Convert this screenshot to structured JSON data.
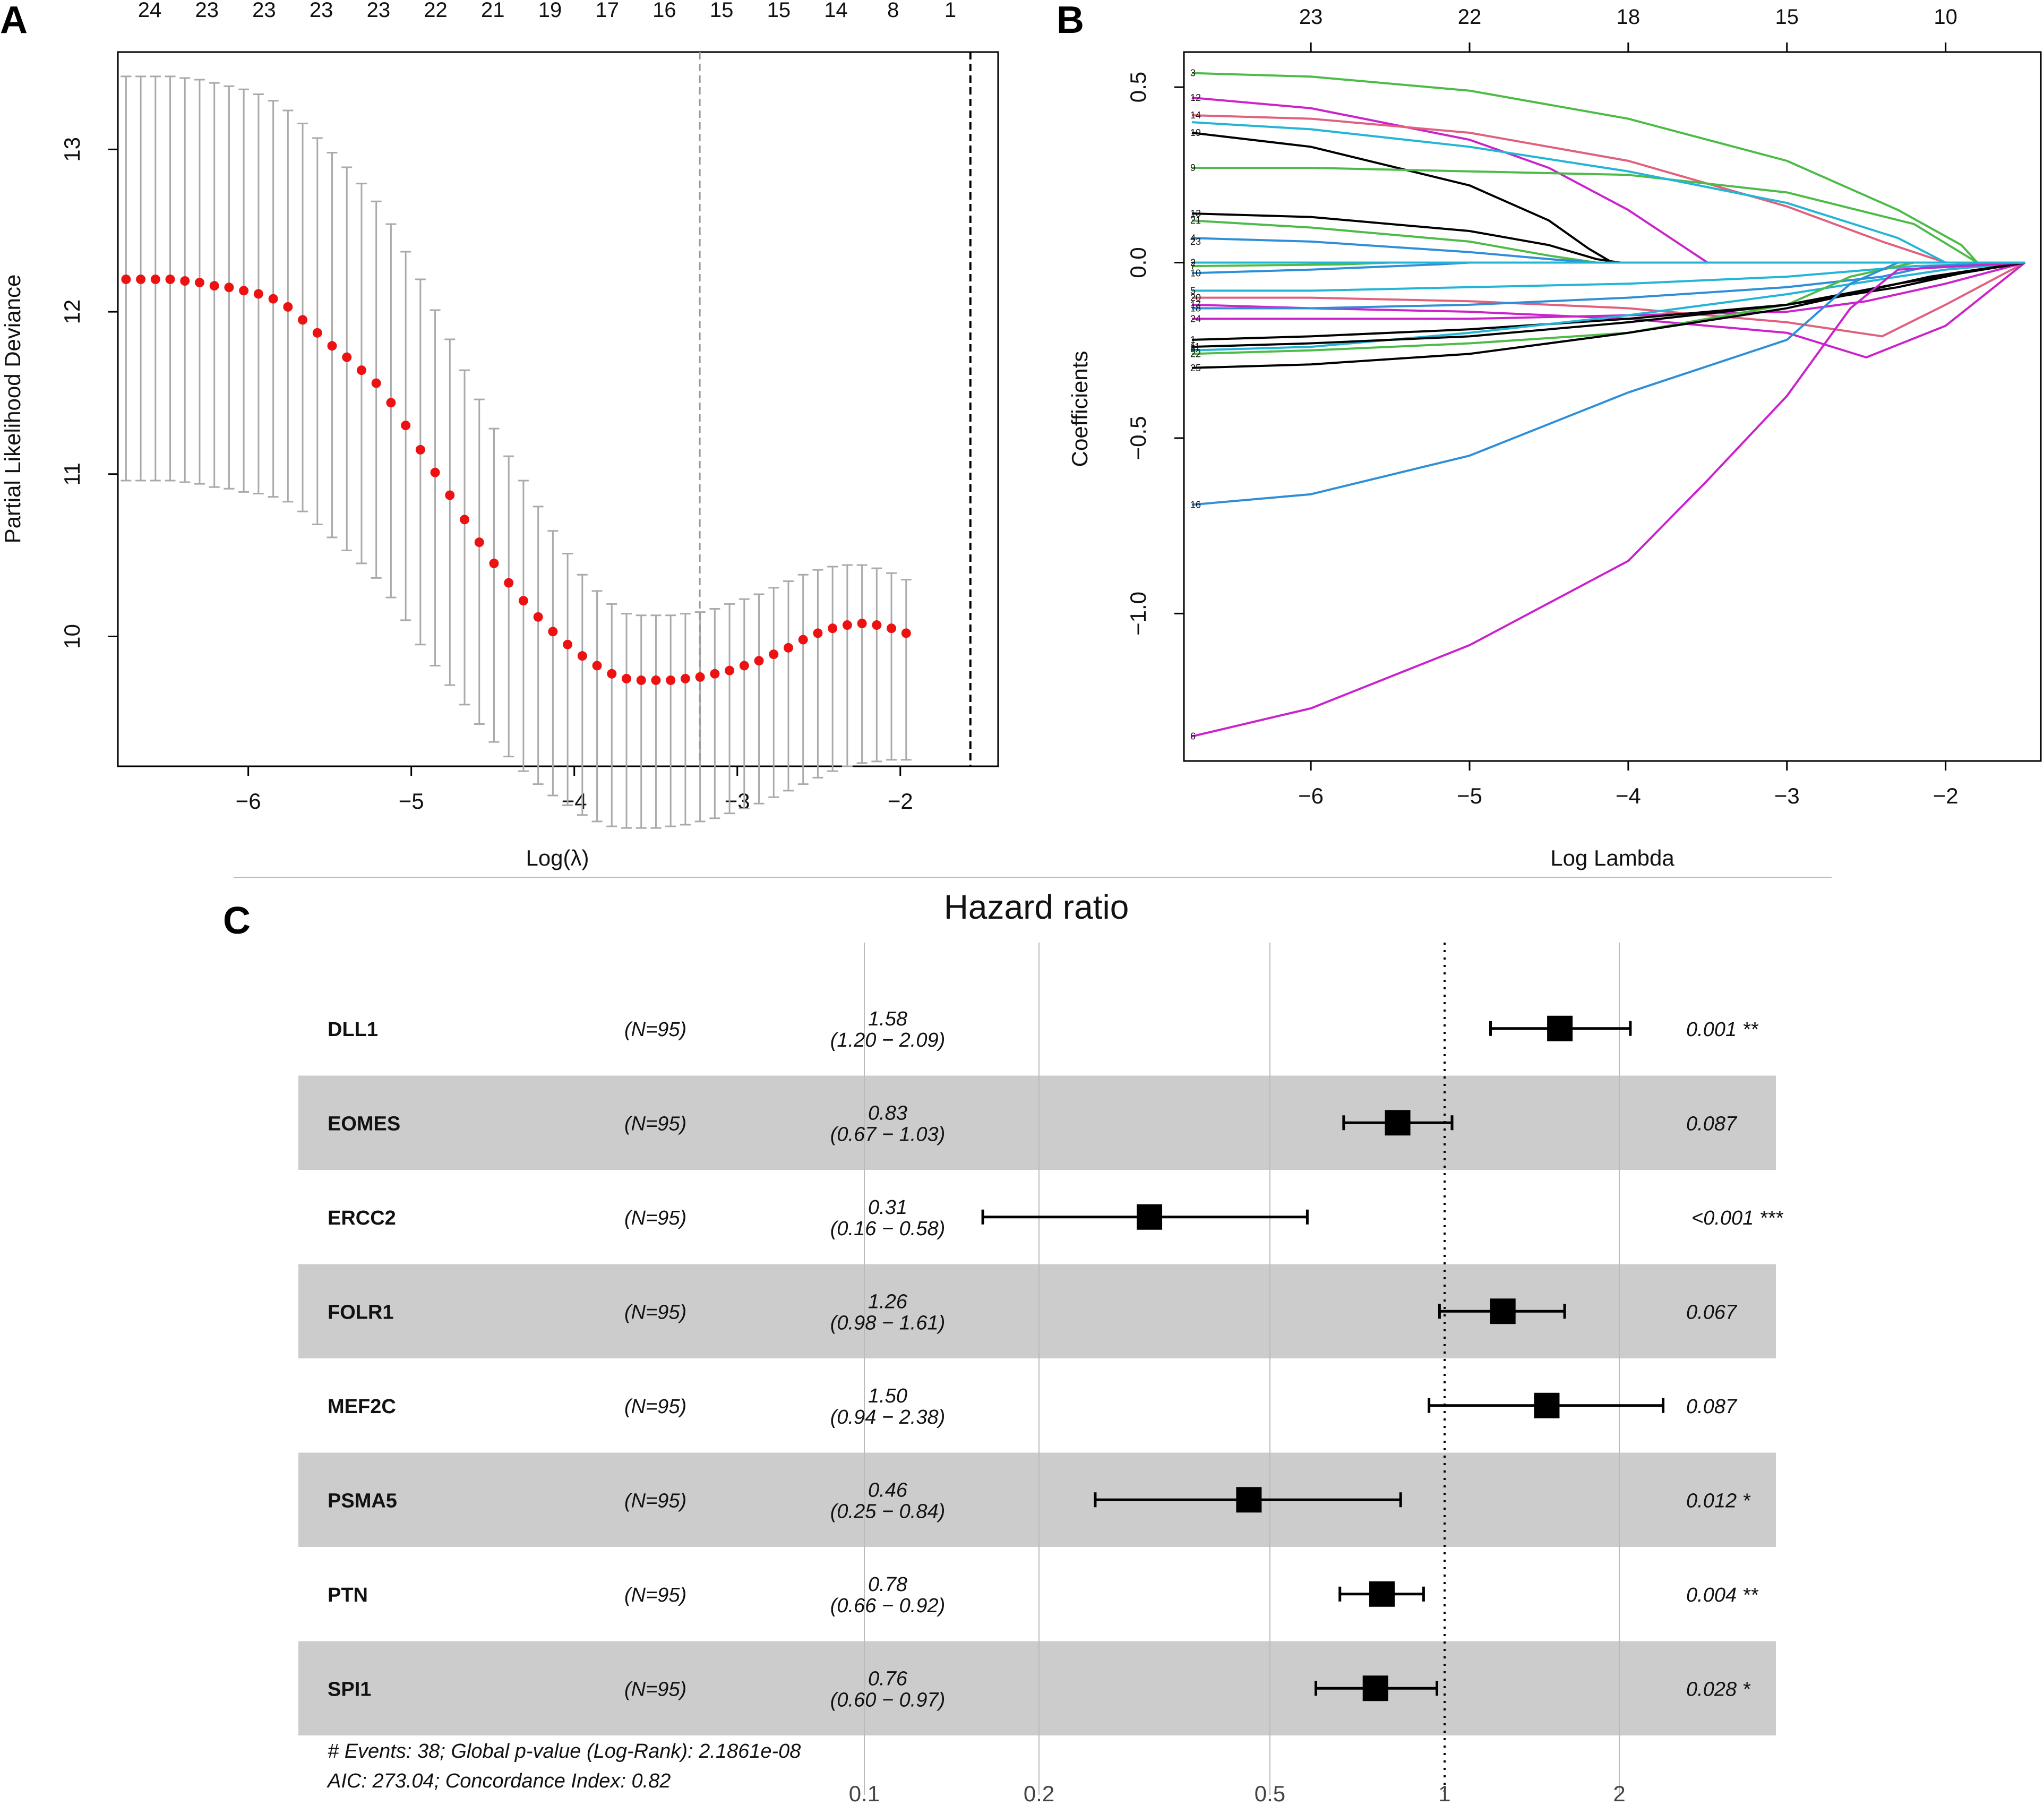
{
  "panels": {
    "a_label": "A",
    "b_label": "B",
    "c_label": "C"
  },
  "chart_data": [
    {
      "id": "A",
      "type": "scatter",
      "title": "",
      "xlabel": "Log(λ)",
      "ylabel": "Partial Likelihood Deviance",
      "xlim": [
        -6.8,
        -1.4
      ],
      "ylim": [
        9.2,
        13.6
      ],
      "xticks": [
        -6,
        -5,
        -4,
        -3,
        -2
      ],
      "yticks": [
        10,
        11,
        12,
        13
      ],
      "top_axis_labels": [
        "24",
        "23",
        "23",
        "23",
        "23",
        "22",
        "21",
        "19",
        "17",
        "16",
        "15",
        "15",
        "14",
        "8",
        "1"
      ],
      "vlines": [
        -3.23,
        -1.57
      ],
      "x_start": -6.75,
      "x_step": 0.0903,
      "mean": [
        12.2,
        12.2,
        12.2,
        12.2,
        12.19,
        12.18,
        12.16,
        12.15,
        12.13,
        12.11,
        12.08,
        12.03,
        11.95,
        11.87,
        11.79,
        11.72,
        11.64,
        11.56,
        11.44,
        11.3,
        11.15,
        11.01,
        10.87,
        10.72,
        10.58,
        10.45,
        10.33,
        10.22,
        10.12,
        10.03,
        9.95,
        9.88,
        9.82,
        9.77,
        9.74,
        9.73,
        9.73,
        9.73,
        9.74,
        9.75,
        9.77,
        9.79,
        9.82,
        9.85,
        9.89,
        9.93,
        9.98,
        10.02,
        10.05,
        10.07,
        10.08,
        10.07,
        10.05,
        10.02
      ],
      "upper": [
        13.45,
        13.45,
        13.45,
        13.45,
        13.44,
        13.43,
        13.41,
        13.39,
        13.37,
        13.34,
        13.3,
        13.24,
        13.16,
        13.07,
        12.98,
        12.89,
        12.79,
        12.68,
        12.54,
        12.37,
        12.2,
        12.01,
        11.83,
        11.64,
        11.46,
        11.28,
        11.11,
        10.96,
        10.8,
        10.65,
        10.51,
        10.38,
        10.28,
        10.2,
        10.14,
        10.13,
        10.13,
        10.13,
        10.14,
        10.15,
        10.17,
        10.2,
        10.23,
        10.26,
        10.3,
        10.34,
        10.38,
        10.41,
        10.43,
        10.44,
        10.44,
        10.42,
        10.39,
        10.35
      ],
      "lower": [
        10.96,
        10.96,
        10.96,
        10.96,
        10.95,
        10.94,
        10.92,
        10.91,
        10.89,
        10.88,
        10.86,
        10.83,
        10.77,
        10.69,
        10.61,
        10.53,
        10.45,
        10.36,
        10.24,
        10.1,
        9.95,
        9.82,
        9.7,
        9.58,
        9.46,
        9.35,
        9.26,
        9.17,
        9.09,
        9.02,
        8.96,
        8.9,
        8.86,
        8.83,
        8.82,
        8.82,
        8.82,
        8.83,
        8.84,
        8.86,
        8.88,
        8.91,
        8.94,
        8.97,
        9.01,
        9.05,
        9.09,
        9.13,
        9.17,
        9.2,
        9.22,
        9.23,
        9.24,
        9.24
      ]
    },
    {
      "id": "B",
      "type": "line",
      "title": "",
      "xlabel": "Log Lambda",
      "ylabel": "Coefficients",
      "xlim": [
        -6.8,
        -1.4
      ],
      "ylim": [
        -1.42,
        0.6
      ],
      "xticks": [
        -6,
        -5,
        -4,
        -3,
        -2
      ],
      "yticks": [
        -1.0,
        -0.5,
        0.0,
        0.5
      ],
      "ytick_labels": [
        "-1.0",
        "-0.5",
        "0.0",
        "0.5"
      ],
      "top_axis_labels": [
        {
          "x": -6,
          "label": "23"
        },
        {
          "x": -5,
          "label": "22"
        },
        {
          "x": -4,
          "label": "18"
        },
        {
          "x": -3,
          "label": "15"
        },
        {
          "x": -2,
          "label": "10"
        }
      ],
      "series": [
        {
          "name": "3",
          "color": "#4CBB47",
          "x": [
            -6.75,
            -6,
            -5,
            -4,
            -3,
            -2.3,
            -1.9,
            -1.8,
            -1.5
          ],
          "y": [
            0.54,
            0.53,
            0.49,
            0.41,
            0.29,
            0.15,
            0.05,
            0,
            0
          ]
        },
        {
          "name": "12",
          "color": "#CC22CC",
          "x": [
            -6.75,
            -6,
            -5,
            -4.5,
            -4,
            -3.6,
            -3.5,
            -1.5
          ],
          "y": [
            0.47,
            0.44,
            0.35,
            0.27,
            0.15,
            0.03,
            0,
            0
          ]
        },
        {
          "name": "14",
          "color": "#E0607E",
          "x": [
            -6.75,
            -6,
            -5,
            -4,
            -3,
            -2.4,
            -2,
            -1.5
          ],
          "y": [
            0.42,
            0.41,
            0.37,
            0.29,
            0.16,
            0.06,
            0,
            0
          ]
        },
        {
          "name": "19",
          "color": "#000000",
          "x": [
            -6.75,
            -6,
            -5,
            -4.5,
            -4.25,
            -4.1,
            -1.5
          ],
          "y": [
            0.37,
            0.33,
            0.22,
            0.12,
            0.04,
            0,
            0
          ]
        },
        {
          "name": "9",
          "color": "#4CBB47",
          "x": [
            -6.75,
            -6,
            -5,
            -4,
            -3,
            -2.2,
            -1.8,
            -1.5
          ],
          "y": [
            0.27,
            0.27,
            0.26,
            0.25,
            0.2,
            0.11,
            0,
            0
          ]
        },
        {
          "name": "13",
          "color": "#000000",
          "x": [
            -6.75,
            -6,
            -5,
            -4.5,
            -4.2,
            -4.05,
            -1.5
          ],
          "y": [
            0.14,
            0.13,
            0.09,
            0.05,
            0.01,
            0,
            0
          ]
        },
        {
          "name": "21",
          "color": "#4CBB47",
          "x": [
            -6.75,
            -6,
            -5,
            -4.5,
            -4.2,
            -1.5
          ],
          "y": [
            0.12,
            0.1,
            0.06,
            0.02,
            0,
            0
          ]
        },
        {
          "name": "23",
          "color": "#22B5D6",
          "x": [
            -6.75,
            -6,
            -5,
            -4,
            -3,
            -2.3,
            -2,
            -1.5
          ],
          "y": [
            0.4,
            0.38,
            0.33,
            0.26,
            0.17,
            0.07,
            0,
            0
          ]
        },
        {
          "name": "4",
          "color": "#2E8FD8",
          "x": [
            -6.75,
            -6,
            -5,
            -4.5,
            -4.2,
            -1.5
          ],
          "y": [
            0.07,
            0.06,
            0.03,
            0.01,
            0,
            0
          ]
        },
        {
          "name": "2",
          "color": "#000000",
          "x": [
            -6.75,
            -6,
            -1.5
          ],
          "y": [
            0.0,
            0.0,
            0.0
          ]
        },
        {
          "name": "7",
          "color": "#4CBB47",
          "x": [
            -6.75,
            -5.8,
            -5.5,
            -1.5
          ],
          "y": [
            -0.01,
            -0.005,
            0,
            0
          ]
        },
        {
          "name": "10",
          "color": "#2E8FD8",
          "x": [
            -6.75,
            -6,
            -5.2,
            -5,
            -1.5
          ],
          "y": [
            -0.03,
            -0.02,
            -0.005,
            0,
            0
          ]
        },
        {
          "name": "5",
          "color": "#22B5D6",
          "x": [
            -6.75,
            -6,
            -5,
            -4,
            -3,
            -2.2,
            -1.5
          ],
          "y": [
            -0.08,
            -0.08,
            -0.07,
            -0.06,
            -0.04,
            -0.01,
            0
          ]
        },
        {
          "name": "20",
          "color": "#E0607E",
          "x": [
            -6.75,
            -6,
            -5,
            -4,
            -3,
            -2.4,
            -2,
            -1.5
          ],
          "y": [
            -0.1,
            -0.1,
            -0.11,
            -0.13,
            -0.17,
            -0.21,
            -0.12,
            0
          ]
        },
        {
          "name": "17",
          "color": "#CC22CC",
          "x": [
            -6.75,
            -6,
            -5,
            -4,
            -3,
            -2.5,
            -2,
            -1.5
          ],
          "y": [
            -0.12,
            -0.13,
            -0.14,
            -0.16,
            -0.2,
            -0.27,
            -0.18,
            0
          ]
        },
        {
          "name": "18",
          "color": "#2E8FD8",
          "x": [
            -6.75,
            -6,
            -5,
            -4,
            -3,
            -2.4,
            -2.1,
            -1.5
          ],
          "y": [
            -0.13,
            -0.13,
            -0.12,
            -0.1,
            -0.07,
            -0.04,
            -0.01,
            0
          ]
        },
        {
          "name": "24",
          "color": "#CC22CC",
          "x": [
            -6.75,
            -6,
            -5,
            -4,
            -3,
            -2.5,
            -2,
            -1.5
          ],
          "y": [
            -0.16,
            -0.16,
            -0.16,
            -0.15,
            -0.14,
            -0.11,
            -0.06,
            0
          ]
        },
        {
          "name": "1",
          "color": "#000000",
          "x": [
            -6.75,
            -6,
            -5,
            -4,
            -3,
            -2.3,
            -1.9,
            -1.5
          ],
          "y": [
            -0.22,
            -0.21,
            -0.19,
            -0.16,
            -0.12,
            -0.07,
            -0.03,
            0
          ]
        },
        {
          "name": "11",
          "color": "#22B5D6",
          "x": [
            -6.75,
            -6,
            -5,
            -4,
            -3,
            -2.3,
            -2,
            -1.5
          ],
          "y": [
            -0.25,
            -0.24,
            -0.2,
            -0.15,
            -0.09,
            -0.04,
            -0.02,
            0
          ]
        },
        {
          "name": "22",
          "color": "#4CBB47",
          "x": [
            -6.75,
            -6,
            -5,
            -4,
            -3,
            -2.6,
            -2.2,
            -1.5
          ],
          "y": [
            -0.26,
            -0.25,
            -0.23,
            -0.2,
            -0.12,
            -0.04,
            0,
            0
          ]
        },
        {
          "name": "8",
          "color": "#000000",
          "x": [
            -6.75,
            -6,
            -5,
            -4,
            -3,
            -2.3,
            -1.9,
            -1.5
          ],
          "y": [
            -0.24,
            -0.23,
            -0.21,
            -0.17,
            -0.12,
            -0.06,
            -0.03,
            0
          ]
        },
        {
          "name": "25",
          "color": "#000000",
          "x": [
            -6.75,
            -6,
            -5,
            -4,
            -3,
            -2.5,
            -2.1,
            -1.5
          ],
          "y": [
            -0.3,
            -0.29,
            -0.26,
            -0.2,
            -0.13,
            -0.08,
            -0.04,
            0
          ]
        },
        {
          "name": "16",
          "color": "#2E8FD8",
          "x": [
            -6.75,
            -6,
            -5,
            -4,
            -3,
            -2.6,
            -2.3,
            -1.5
          ],
          "y": [
            -0.69,
            -0.66,
            -0.55,
            -0.37,
            -0.22,
            -0.06,
            0,
            0
          ]
        },
        {
          "name": "6",
          "color": "#CC22CC",
          "x": [
            -6.75,
            -6,
            -5,
            -4,
            -3.5,
            -3,
            -2.6,
            -2.3,
            -1.5
          ],
          "y": [
            -1.35,
            -1.27,
            -1.09,
            -0.85,
            -0.62,
            -0.38,
            -0.13,
            -0.02,
            0
          ]
        },
        {
          "name": "15",
          "color": "#22B5D6",
          "x": [
            -6.75,
            -5,
            -4.5,
            -1.5
          ],
          "y": [
            0.0,
            0.0,
            0.0,
            0.0
          ]
        }
      ],
      "left_labels": [
        {
          "label": "3",
          "y": 0.54
        },
        {
          "label": "12",
          "y": 0.47
        },
        {
          "label": "14",
          "y": 0.42
        },
        {
          "label": "19",
          "y": 0.37
        },
        {
          "label": "9",
          "y": 0.27
        },
        {
          "label": "13",
          "y": 0.14
        },
        {
          "label": "21",
          "y": 0.12
        },
        {
          "label": "4",
          "y": 0.07
        },
        {
          "label": "23",
          "y": 0.06
        },
        {
          "label": "2",
          "y": 0.0
        },
        {
          "label": "7",
          "y": -0.01
        },
        {
          "label": "10",
          "y": -0.03
        },
        {
          "label": "5",
          "y": -0.08
        },
        {
          "label": "20",
          "y": -0.1
        },
        {
          "label": "17",
          "y": -0.12
        },
        {
          "label": "18",
          "y": -0.13
        },
        {
          "label": "24",
          "y": -0.16
        },
        {
          "label": "1",
          "y": -0.22
        },
        {
          "label": "11",
          "y": -0.24
        },
        {
          "label": "22",
          "y": -0.26
        },
        {
          "label": "8",
          "y": -0.245
        },
        {
          "label": "25",
          "y": -0.3
        },
        {
          "label": "16",
          "y": -0.69
        },
        {
          "label": "6",
          "y": -1.35
        }
      ]
    },
    {
      "id": "C",
      "type": "scatter",
      "title": "Hazard ratio",
      "xscale": "log",
      "xlim": [
        0.1,
        3.2
      ],
      "xticks": [
        0.1,
        0.2,
        0.5,
        1,
        2
      ],
      "xtick_labels": [
        "0.1",
        "0.2",
        "0.5",
        "1",
        "2"
      ],
      "reference_line": 1,
      "rows": [
        {
          "gene": "DLL1",
          "n": "(N=95)",
          "hr": 1.58,
          "lo": 1.2,
          "hi": 2.09,
          "hr_text": "1.58",
          "ci_text": "(1.20 − 2.09)",
          "p_text": "0.001 **"
        },
        {
          "gene": "EOMES",
          "n": "(N=95)",
          "hr": 0.83,
          "lo": 0.67,
          "hi": 1.03,
          "hr_text": "0.83",
          "ci_text": "(0.67 − 1.03)",
          "p_text": "0.087"
        },
        {
          "gene": "ERCC2",
          "n": "(N=95)",
          "hr": 0.31,
          "lo": 0.16,
          "hi": 0.58,
          "hr_text": "0.31",
          "ci_text": "(0.16 − 0.58)",
          "p_text": "<0.001 ***"
        },
        {
          "gene": "FOLR1",
          "n": "(N=95)",
          "hr": 1.26,
          "lo": 0.98,
          "hi": 1.61,
          "hr_text": "1.26",
          "ci_text": "(0.98 − 1.61)",
          "p_text": "0.067"
        },
        {
          "gene": "MEF2C",
          "n": "(N=95)",
          "hr": 1.5,
          "lo": 0.94,
          "hi": 2.38,
          "hr_text": "1.50",
          "ci_text": "(0.94 − 2.38)",
          "p_text": "0.087"
        },
        {
          "gene": "PSMA5",
          "n": "(N=95)",
          "hr": 0.46,
          "lo": 0.25,
          "hi": 0.84,
          "hr_text": "0.46",
          "ci_text": "(0.25 − 0.84)",
          "p_text": "0.012 *"
        },
        {
          "gene": "PTN",
          "n": "(N=95)",
          "hr": 0.78,
          "lo": 0.66,
          "hi": 0.92,
          "hr_text": "0.78",
          "ci_text": "(0.66 − 0.92)",
          "p_text": "0.004 **"
        },
        {
          "gene": "SPI1",
          "n": "(N=95)",
          "hr": 0.76,
          "lo": 0.6,
          "hi": 0.97,
          "hr_text": "0.76",
          "ci_text": "(0.60 − 0.97)",
          "p_text": "0.028 *"
        }
      ],
      "footnote_1": "# Events: 38; Global p-value (Log-Rank): 2.1861e-08",
      "footnote_2": "AIC: 273.04; Concordance Index: 0.82"
    }
  ]
}
